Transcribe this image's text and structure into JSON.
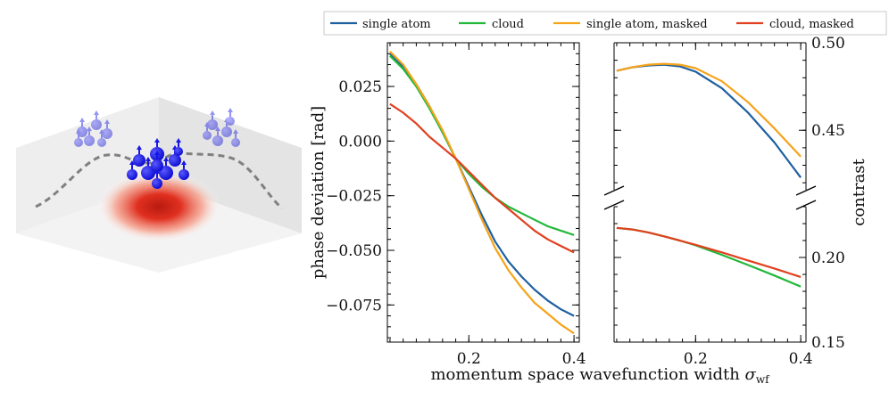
{
  "colors": {
    "single_atom": "#1f5fa0",
    "cloud": "#22b83a",
    "single_atom_masked": "#f5a31a",
    "cloud_masked": "#e0401f",
    "atom_blue": "#1515e8",
    "potential_red": "#e03020"
  },
  "illustration": {
    "icon": "atom-cloud-illustration"
  },
  "legend": {
    "single_atom": "single atom",
    "cloud": "cloud",
    "single_atom_masked": "single atom, masked",
    "cloud_masked": "cloud, masked"
  },
  "x_label": "momentum space wavefunction width σ_wf",
  "x_label_main": "momentum space wavefunction width ",
  "x_label_sym": "σ",
  "x_label_sub": "wf",
  "chart_data": [
    {
      "type": "line",
      "ylabel": "phase deviation [rad]",
      "xlim": [
        0.045,
        0.41
      ],
      "ylim": [
        -0.092,
        0.045
      ],
      "xticks": [
        0.2,
        0.4
      ],
      "xtick_labels": [
        "0.2",
        "0.4"
      ],
      "yticks": [
        0.025,
        0.0,
        -0.025,
        -0.05,
        -0.075
      ],
      "ytick_labels": [
        "0.025",
        "0.000",
        "−0.025",
        "−0.050",
        "−0.075"
      ],
      "x": [
        0.05,
        0.075,
        0.1,
        0.125,
        0.15,
        0.175,
        0.2,
        0.225,
        0.25,
        0.275,
        0.3,
        0.325,
        0.35,
        0.375,
        0.4
      ],
      "series": [
        {
          "name": "single atom",
          "values": [
            0.04,
            0.034,
            0.026,
            0.016,
            0.004,
            -0.008,
            -0.021,
            -0.034,
            -0.046,
            -0.055,
            -0.062,
            -0.068,
            -0.073,
            -0.077,
            -0.08
          ]
        },
        {
          "name": "cloud",
          "values": [
            0.039,
            0.033,
            0.025,
            0.015,
            0.004,
            -0.008,
            -0.015,
            -0.021,
            -0.026,
            -0.03,
            -0.033,
            -0.036,
            -0.039,
            -0.041,
            -0.043
          ]
        },
        {
          "name": "single atom, masked",
          "values": [
            0.041,
            0.035,
            0.026,
            0.016,
            0.005,
            -0.008,
            -0.022,
            -0.036,
            -0.049,
            -0.059,
            -0.067,
            -0.074,
            -0.079,
            -0.084,
            -0.088
          ]
        },
        {
          "name": "cloud, masked",
          "values": [
            0.017,
            0.013,
            0.008,
            0.002,
            -0.003,
            -0.008,
            -0.014,
            -0.02,
            -0.026,
            -0.031,
            -0.036,
            -0.041,
            -0.045,
            -0.048,
            -0.051
          ]
        }
      ]
    },
    {
      "type": "line",
      "ylabel": "contrast",
      "y_axis_break": true,
      "xlim": [
        0.045,
        0.41
      ],
      "xticks": [
        0.2,
        0.4
      ],
      "xtick_labels": [
        "0.2",
        "0.4"
      ],
      "upper": {
        "ylim": [
          0.416,
          0.5
        ],
        "yticks": [
          0.5,
          0.45
        ],
        "ytick_labels": [
          "0.50",
          "0.45"
        ],
        "x": [
          0.05,
          0.08,
          0.11,
          0.14,
          0.17,
          0.2,
          0.25,
          0.3,
          0.35,
          0.4
        ],
        "series": [
          {
            "name": "single atom",
            "values": [
              0.484,
              0.486,
              0.487,
              0.4875,
              0.4865,
              0.4835,
              0.474,
              0.46,
              0.443,
              0.423
            ]
          },
          {
            "name": "single atom, masked",
            "values": [
              0.484,
              0.486,
              0.4875,
              0.488,
              0.4875,
              0.4855,
              0.478,
              0.466,
              0.451,
              0.435
            ]
          }
        ]
      },
      "lower": {
        "ylim": [
          0.15,
          0.23
        ],
        "yticks": [
          0.2,
          0.15
        ],
        "ytick_labels": [
          "0.20",
          "0.15"
        ],
        "x": [
          0.05,
          0.08,
          0.11,
          0.14,
          0.17,
          0.2,
          0.25,
          0.3,
          0.35,
          0.4
        ],
        "series": [
          {
            "name": "cloud",
            "values": [
              0.2175,
              0.2165,
              0.2148,
              0.2125,
              0.21,
              0.2072,
              0.2015,
              0.1955,
              0.1893,
              0.1828
            ]
          },
          {
            "name": "cloud, masked",
            "values": [
              0.2175,
              0.2165,
              0.2148,
              0.2125,
              0.21,
              0.2075,
              0.203,
              0.1982,
              0.1935,
              0.1885
            ]
          }
        ]
      }
    }
  ]
}
